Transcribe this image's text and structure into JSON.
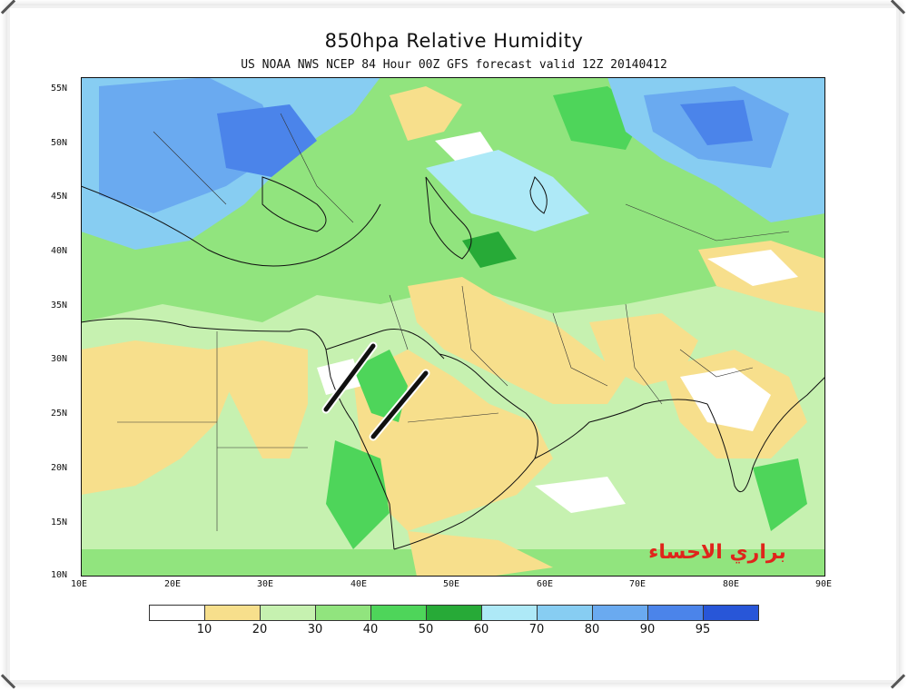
{
  "title": "850hpa Relative Humidity",
  "subtitle": "US NOAA NWS NCEP 84 Hour 00Z GFS forecast valid 12Z 20140412",
  "watermark": "براري الاحساء",
  "lat_labels": [
    "55N",
    "50N",
    "45N",
    "40N",
    "35N",
    "30N",
    "25N",
    "20N",
    "15N",
    "10N"
  ],
  "lon_labels": [
    "10E",
    "20E",
    "30E",
    "40E",
    "50E",
    "60E",
    "70E",
    "80E",
    "90E"
  ],
  "legend": {
    "labels": [
      "10",
      "20",
      "30",
      "40",
      "50",
      "60",
      "70",
      "80",
      "90",
      "95"
    ],
    "colors": [
      "#ffffff",
      "#f7df8c",
      "#c6f1b0",
      "#91e47e",
      "#4ed55a",
      "#27aa37",
      "#aee9f7",
      "#87cdf2",
      "#6aaaf0",
      "#4b84ea",
      "#2856d8"
    ]
  },
  "colors": {
    "dry": "#f7df8c",
    "moist_green": "#91e47e",
    "wet_blue": "#4b84ea",
    "marker_line": "#111111",
    "watermark": "#e0241b"
  }
}
